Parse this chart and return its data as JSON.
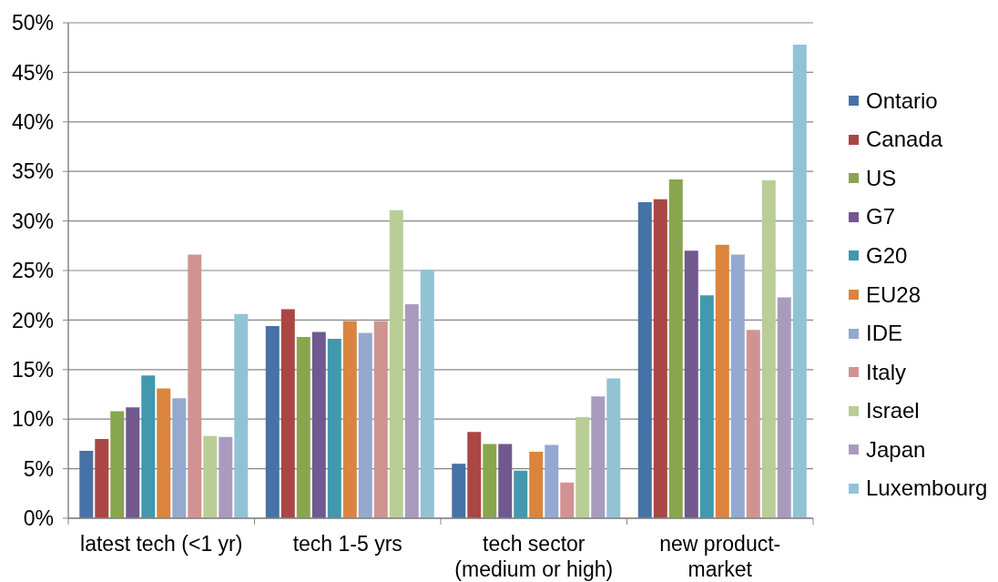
{
  "chart_data": {
    "type": "bar",
    "categories": [
      "latest tech (<1 yr)",
      "tech 1-5 yrs",
      "tech sector\n(medium or high)",
      "new product-\nmarket"
    ],
    "series": [
      {
        "name": "Ontario",
        "color": "#4572a7",
        "values": [
          6.8,
          19.4,
          5.5,
          31.9
        ]
      },
      {
        "name": "Canada",
        "color": "#aa4643",
        "values": [
          8.0,
          21.1,
          8.7,
          32.2
        ]
      },
      {
        "name": "US",
        "color": "#89a54e",
        "values": [
          10.8,
          18.3,
          7.5,
          34.2
        ]
      },
      {
        "name": "G7",
        "color": "#71588f",
        "values": [
          11.2,
          18.8,
          7.5,
          27.0
        ]
      },
      {
        "name": "G20",
        "color": "#4198af",
        "values": [
          14.4,
          18.1,
          4.8,
          22.5
        ]
      },
      {
        "name": "EU28",
        "color": "#db843d",
        "values": [
          13.1,
          19.9,
          6.7,
          27.6
        ]
      },
      {
        "name": "IDE",
        "color": "#93a9cf",
        "values": [
          12.1,
          18.7,
          7.4,
          26.6
        ]
      },
      {
        "name": "Italy",
        "color": "#d19392",
        "values": [
          26.6,
          19.9,
          3.6,
          19.0
        ]
      },
      {
        "name": "Israel",
        "color": "#b9cd96",
        "values": [
          8.3,
          31.1,
          10.2,
          34.1
        ]
      },
      {
        "name": "Japan",
        "color": "#a99bbd",
        "values": [
          8.2,
          21.6,
          12.3,
          22.3
        ]
      },
      {
        "name": "Luxembourg",
        "color": "#92c3d5",
        "values": [
          20.6,
          25.1,
          14.1,
          47.8
        ]
      }
    ],
    "ylim": [
      0,
      50
    ],
    "yticks": [
      {
        "value": 0,
        "label": "0%"
      },
      {
        "value": 5,
        "label": "5%"
      },
      {
        "value": 10,
        "label": "10%"
      },
      {
        "value": 15,
        "label": "15%"
      },
      {
        "value": 20,
        "label": "20%"
      },
      {
        "value": 25,
        "label": "25%"
      },
      {
        "value": 30,
        "label": "30%"
      },
      {
        "value": 35,
        "label": "35%"
      },
      {
        "value": 40,
        "label": "40%"
      },
      {
        "value": 45,
        "label": "45%"
      },
      {
        "value": 50,
        "label": "50%"
      }
    ],
    "grid": "y",
    "legend": "right"
  }
}
